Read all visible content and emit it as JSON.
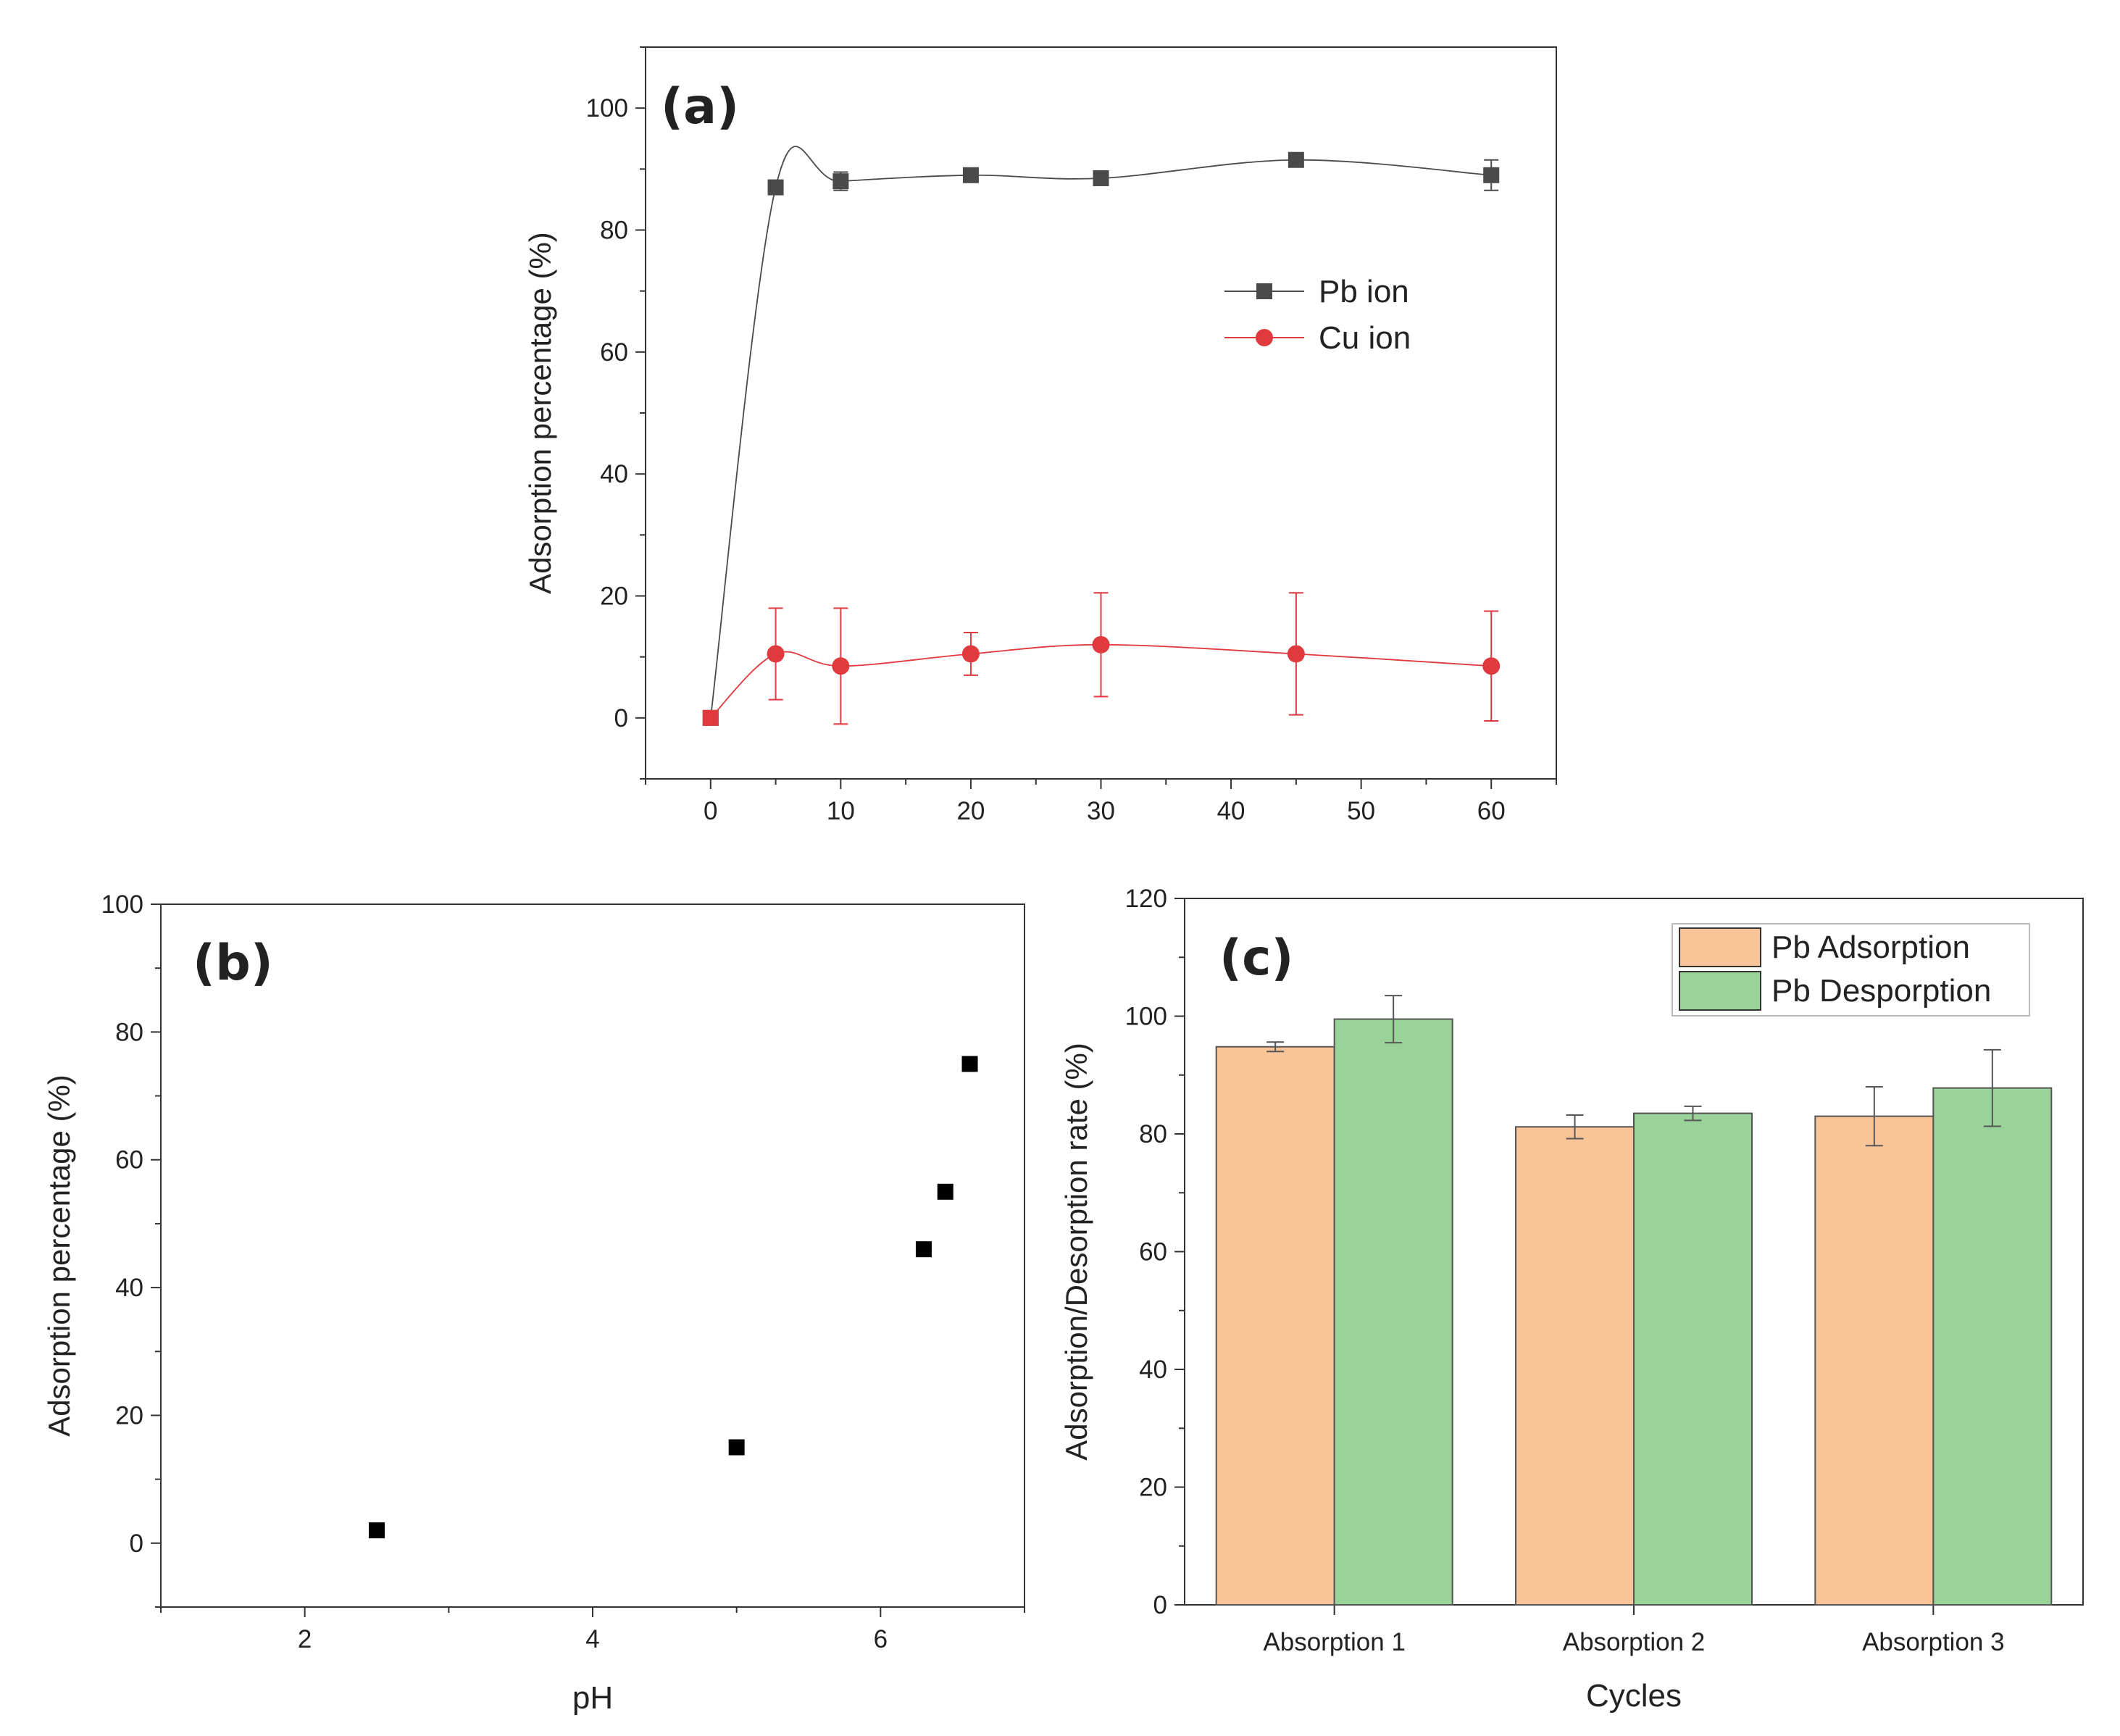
{
  "chart_data": [
    {
      "panel": "(a)",
      "type": "line",
      "xlabel": "",
      "ylabel": "Adsorption percentage (%)",
      "xlim": [
        -5,
        65
      ],
      "ylim": [
        -10,
        110
      ],
      "xticks": [
        0,
        10,
        20,
        30,
        40,
        50,
        60
      ],
      "yticks": [
        0,
        20,
        40,
        60,
        80,
        100
      ],
      "grid": false,
      "legend": "right-middle",
      "series": [
        {
          "name": "Pb ion",
          "marker": "square",
          "color": "#4a4a4a",
          "x": [
            0,
            5,
            10,
            20,
            30,
            45,
            60
          ],
          "values": [
            0,
            87,
            88,
            89,
            88.5,
            91.5,
            89
          ],
          "errors": [
            0,
            0,
            1.5,
            1,
            1,
            1,
            2.5
          ]
        },
        {
          "name": "Cu ion",
          "marker": "circle",
          "color": "#e0393e",
          "x": [
            0,
            5,
            10,
            20,
            30,
            45,
            60
          ],
          "values": [
            0,
            10.5,
            8.5,
            10.5,
            12,
            10.5,
            8.5
          ],
          "errors": [
            0,
            7.5,
            9.5,
            3.5,
            8.5,
            10,
            9
          ]
        }
      ]
    },
    {
      "panel": "(b)",
      "type": "scatter",
      "xlabel": "pH",
      "ylabel": "Adsorption percentage (%)",
      "xlim": [
        1,
        7
      ],
      "ylim": [
        -10,
        100
      ],
      "xticks": [
        2,
        4,
        6
      ],
      "yticks": [
        0,
        20,
        40,
        60,
        80,
        100
      ],
      "grid": false,
      "series": [
        {
          "marker": "square",
          "color": "#000000",
          "x": [
            2.5,
            5.0,
            6.3,
            6.45,
            6.62
          ],
          "values": [
            2,
            15,
            46,
            55,
            75
          ]
        }
      ]
    },
    {
      "panel": "(c)",
      "type": "bar",
      "xlabel": "Cycles",
      "ylabel": "Adsorption/Desorption rate (%)",
      "ylim": [
        0,
        120
      ],
      "yticks": [
        0,
        20,
        40,
        60,
        80,
        100,
        120
      ],
      "categories": [
        "Absorption 1",
        "Absorption 2",
        "Absorption 3"
      ],
      "grid": false,
      "legend": "top-right",
      "series": [
        {
          "name": "Pb Adsorption",
          "color": "#f9c497",
          "values": [
            94.8,
            81.2,
            83
          ],
          "errors": [
            0.8,
            2,
            5
          ]
        },
        {
          "name": "Pb Desporption",
          "color": "#9ad39a",
          "values": [
            99.5,
            83.5,
            87.8
          ],
          "errors": [
            4,
            1.2,
            6.5
          ]
        }
      ]
    }
  ]
}
